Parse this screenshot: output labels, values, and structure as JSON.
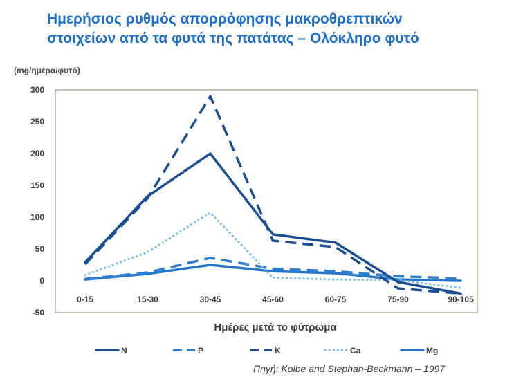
{
  "title": {
    "line1": "Ημερήσιος ρυθμός απορρόφησης μακροθρεπτικών",
    "line2": "στοιχείων από τα φυτά της πατάτας – Ολόκληρο φυτό"
  },
  "source": "Πηγή: Kolbe and Stephan-Beckmann – 1997",
  "colors": {
    "title": "#1f6fc6",
    "N": "#1c4f91",
    "P": "#2e7fd1",
    "K": "#1c4f91",
    "Ca": "#7fbef0",
    "Mg": "#2676c9",
    "frame": "#b7ad9d"
  },
  "chart_data": {
    "type": "line",
    "title": "Ημερήσιος ρυθμός απορρόφησης μακροθρεπτικών στοιχείων από τα φυτά της πατάτας – Ολόκληρο φυτό",
    "ylabel": "(mg/ημέρα/φυτό)",
    "xlabel": "Ημέρες μετά το φύτρωμα",
    "categories": [
      "0-15",
      "15-30",
      "30-45",
      "45-60",
      "60-75",
      "75-90",
      "90-105"
    ],
    "ylim": [
      -50,
      300
    ],
    "yticks": [
      -50,
      0,
      50,
      100,
      150,
      200,
      250,
      300
    ],
    "grid": false,
    "legend": "bottom",
    "series": [
      {
        "name": "N",
        "style": "solid",
        "values": [
          29,
          133,
          200,
          73,
          60,
          -2,
          -20
        ]
      },
      {
        "name": "P",
        "style": "dashed",
        "values": [
          3,
          13,
          36,
          19,
          15,
          7,
          4
        ]
      },
      {
        "name": "K",
        "style": "dashed",
        "values": [
          26,
          130,
          290,
          63,
          53,
          -12,
          -20
        ]
      },
      {
        "name": "Ca",
        "style": "dotted",
        "values": [
          9,
          45,
          107,
          5,
          2,
          1,
          -11
        ]
      },
      {
        "name": "Mg",
        "style": "solid",
        "values": [
          2,
          11,
          25,
          15,
          12,
          2,
          0
        ]
      }
    ]
  }
}
